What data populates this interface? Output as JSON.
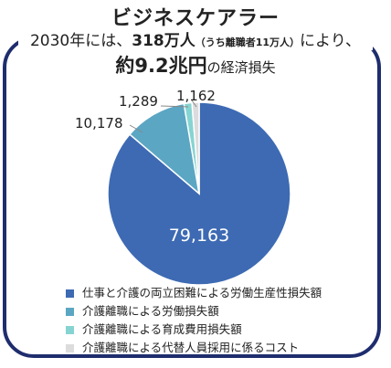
{
  "header": {
    "title": "ビジネスケアラー",
    "line1_pre": "2030年には、",
    "line1_bold": "318万人",
    "line1_small": "（うち離職者11万人）",
    "line1_post": "により、",
    "line2_bold": "約9.2兆円",
    "line2_post": "の経済損失"
  },
  "chart_data": {
    "type": "pie",
    "slices": [
      {
        "label": "仕事と介護の両立困難による労働生産性損失額",
        "value": 79163,
        "display": "79,163",
        "color": "#3d6ab3"
      },
      {
        "label": "介護離職による労働損失額",
        "value": 10178,
        "display": "10,178",
        "color": "#5ba6c3"
      },
      {
        "label": "介護離職による育成費用損失額",
        "value": 1289,
        "display": "1,289",
        "color": "#86d4d2"
      },
      {
        "label": "介護離職による代替人員採用に係るコスト",
        "value": 1162,
        "display": "1,162",
        "color": "#dcdcdc"
      }
    ]
  }
}
